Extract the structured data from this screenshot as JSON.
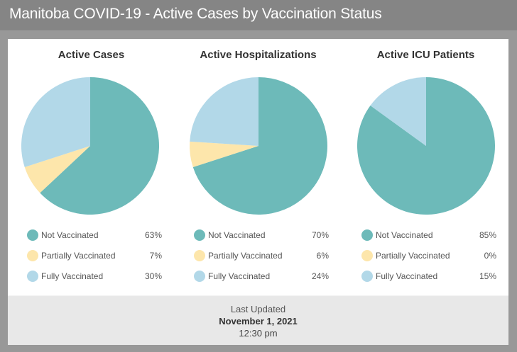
{
  "header": {
    "title": "Manitoba COVID-19 - Active Cases by Vaccination Status"
  },
  "colors": {
    "not_vaccinated": "#6dbab9",
    "partially_vaccinated": "#fde6ab",
    "fully_vaccinated": "#b2d8e8"
  },
  "panels": [
    {
      "title": "Active Cases",
      "legend": [
        {
          "label": "Not Vaccinated",
          "value": "63%",
          "color": "#6dbab9"
        },
        {
          "label": "Partially Vaccinated",
          "value": "7%",
          "color": "#fde6ab"
        },
        {
          "label": "Fully Vaccinated",
          "value": "30%",
          "color": "#b2d8e8"
        }
      ]
    },
    {
      "title": "Active Hospitalizations",
      "legend": [
        {
          "label": "Not Vaccinated",
          "value": "70%",
          "color": "#6dbab9"
        },
        {
          "label": "Partially Vaccinated",
          "value": "6%",
          "color": "#fde6ab"
        },
        {
          "label": "Fully Vaccinated",
          "value": "24%",
          "color": "#b2d8e8"
        }
      ]
    },
    {
      "title": "Active ICU Patients",
      "legend": [
        {
          "label": "Not Vaccinated",
          "value": "85%",
          "color": "#6dbab9"
        },
        {
          "label": "Partially Vaccinated",
          "value": "0%",
          "color": "#fde6ab"
        },
        {
          "label": "Fully Vaccinated",
          "value": "15%",
          "color": "#b2d8e8"
        }
      ]
    }
  ],
  "footer": {
    "label": "Last Updated",
    "date": "November 1, 2021",
    "time": "12:30 pm"
  },
  "chart_data": [
    {
      "type": "pie",
      "title": "Active Cases",
      "categories": [
        "Not Vaccinated",
        "Partially Vaccinated",
        "Fully Vaccinated"
      ],
      "values": [
        63,
        7,
        30
      ],
      "colors": [
        "#6dbab9",
        "#fde6ab",
        "#b2d8e8"
      ],
      "legend_position": "bottom"
    },
    {
      "type": "pie",
      "title": "Active Hospitalizations",
      "categories": [
        "Not Vaccinated",
        "Partially Vaccinated",
        "Fully Vaccinated"
      ],
      "values": [
        70,
        6,
        24
      ],
      "colors": [
        "#6dbab9",
        "#fde6ab",
        "#b2d8e8"
      ],
      "legend_position": "bottom"
    },
    {
      "type": "pie",
      "title": "Active ICU Patients",
      "categories": [
        "Not Vaccinated",
        "Partially Vaccinated",
        "Fully Vaccinated"
      ],
      "values": [
        85,
        0,
        15
      ],
      "colors": [
        "#6dbab9",
        "#fde6ab",
        "#b2d8e8"
      ],
      "legend_position": "bottom"
    }
  ]
}
